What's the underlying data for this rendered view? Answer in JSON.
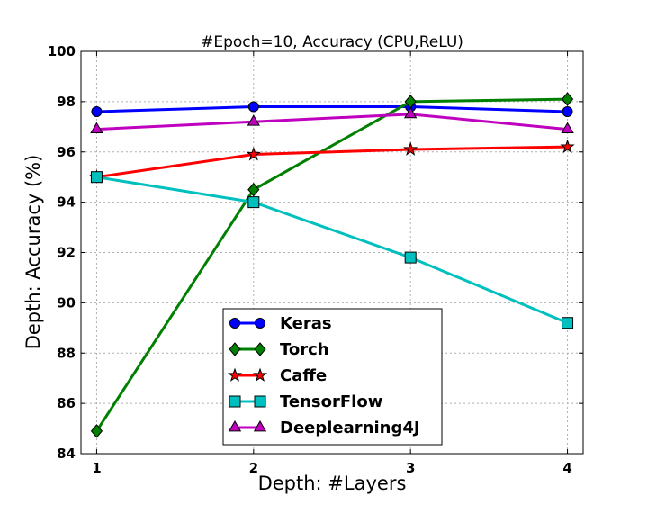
{
  "chart_data": {
    "type": "line",
    "title": "#Epoch=10, Accuracy (CPU,ReLU)",
    "xlabel": "Depth: #Layers",
    "ylabel": "Depth: Accuracy (%)",
    "x": [
      1,
      2,
      3,
      4
    ],
    "xticks": [
      "1",
      "2",
      "3",
      "4"
    ],
    "xlim": [
      0.9,
      4.1
    ],
    "ylim": [
      84,
      100
    ],
    "yticks": [
      "84",
      "86",
      "88",
      "90",
      "92",
      "94",
      "96",
      "98",
      "100"
    ],
    "grid": true,
    "legend_position": "bottom-center",
    "series": [
      {
        "name": "Keras",
        "values": [
          97.6,
          97.8,
          97.8,
          97.6
        ],
        "color": "#0000ff",
        "marker": "circle"
      },
      {
        "name": "Torch",
        "values": [
          84.9,
          94.5,
          98.0,
          98.1
        ],
        "color": "#008000",
        "marker": "diamond"
      },
      {
        "name": "Caffe",
        "values": [
          95.0,
          95.9,
          96.1,
          96.2
        ],
        "color": "#ff0000",
        "marker": "star"
      },
      {
        "name": "TensorFlow",
        "values": [
          95.0,
          94.0,
          91.8,
          89.2
        ],
        "color": "#00bfbf",
        "marker": "square"
      },
      {
        "name": "Deeplearning4J",
        "values": [
          96.9,
          97.2,
          97.5,
          96.9
        ],
        "color": "#bf00bf",
        "marker": "triangle"
      }
    ]
  }
}
